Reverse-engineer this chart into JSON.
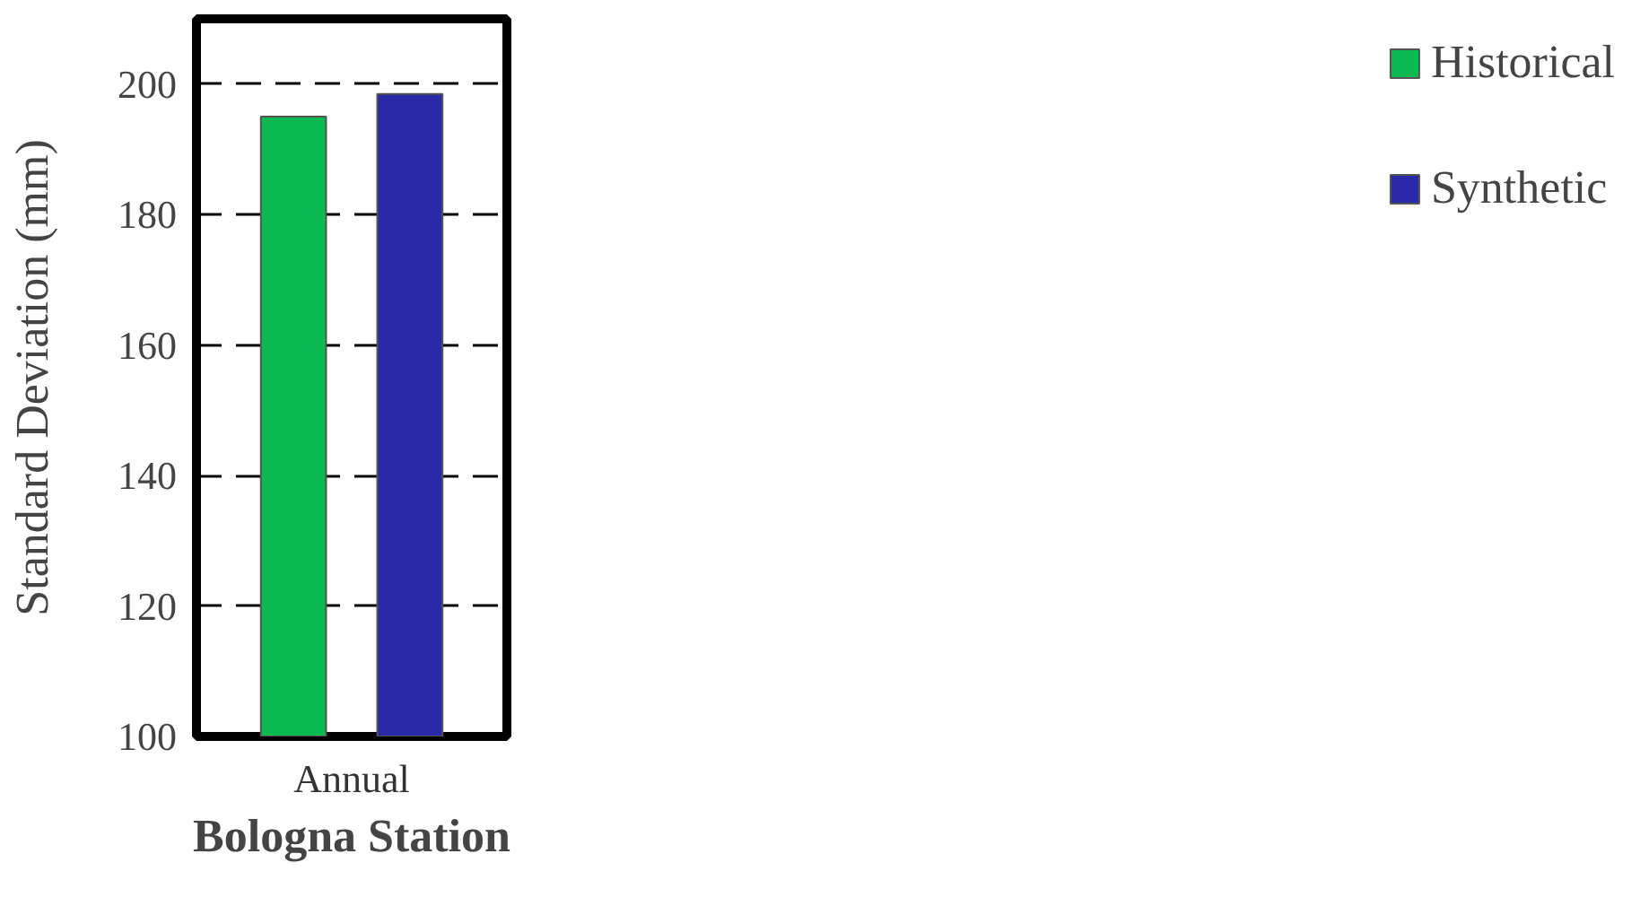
{
  "chart_data": {
    "type": "bar",
    "xlabel": "Bologna Station",
    "ylabel": "Standard Deviation (mm)",
    "categories": [
      "Annual"
    ],
    "series": [
      {
        "name": "Historical",
        "color": "#0cb850",
        "values": [
          195
        ]
      },
      {
        "name": "Synthetic",
        "color": "#2a2aa8",
        "values": [
          198.5
        ]
      }
    ],
    "ylim": [
      100,
      210
    ],
    "yticks": [
      100,
      120,
      140,
      160,
      180,
      200
    ],
    "grid": "y",
    "legend": "right"
  }
}
